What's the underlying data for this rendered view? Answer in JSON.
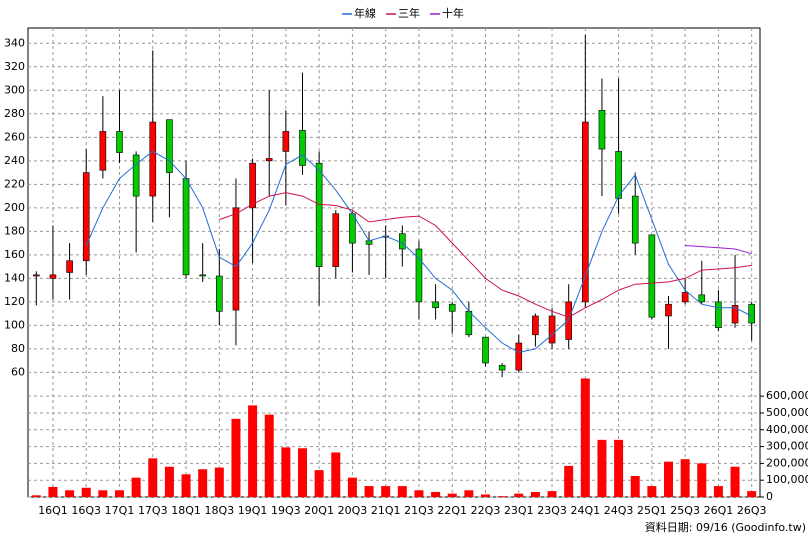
{
  "chart_data": {
    "type": "candlestick",
    "legend": [
      "年線",
      "三年",
      "十年"
    ],
    "categories": [
      null,
      "16Q1",
      null,
      "16Q3",
      null,
      "17Q1",
      null,
      "17Q3",
      null,
      "18Q1",
      null,
      "18Q3",
      null,
      "19Q1",
      null,
      "19Q3",
      null,
      "20Q1",
      null,
      "20Q3",
      null,
      "21Q1",
      null,
      "21Q3",
      null,
      "22Q1",
      null,
      "22Q3",
      null,
      "23Q1",
      null,
      "23Q3",
      null,
      "24Q1",
      null,
      "24Q3",
      null,
      "25Q1",
      null,
      "25Q3",
      null,
      "26Q1",
      null,
      "26Q3"
    ],
    "open": [
      142,
      140,
      145,
      155,
      232,
      265,
      245,
      210,
      275,
      225,
      143,
      142,
      113,
      200,
      240,
      248,
      266,
      238,
      150,
      195,
      172,
      175,
      178,
      165,
      120,
      118,
      112,
      90,
      66,
      62,
      92,
      85,
      88,
      120,
      283,
      248,
      210,
      177,
      108,
      120,
      126,
      120,
      102,
      118
    ],
    "high": [
      146,
      185,
      170,
      250,
      295,
      300,
      248,
      334,
      275,
      240,
      170,
      165,
      225,
      242,
      300,
      283,
      315,
      248,
      198,
      197,
      180,
      185,
      185,
      172,
      135,
      120,
      120,
      90,
      68,
      92,
      110,
      115,
      135,
      347,
      310,
      310,
      230,
      177,
      125,
      140,
      155,
      130,
      160,
      120
    ],
    "low": [
      117,
      122,
      122,
      143,
      225,
      238,
      162,
      188,
      192,
      140,
      137,
      100,
      83,
      153,
      210,
      202,
      228,
      117,
      140,
      145,
      143,
      140,
      150,
      105,
      105,
      93,
      90,
      65,
      56,
      60,
      82,
      80,
      80,
      115,
      210,
      195,
      160,
      105,
      80,
      118,
      118,
      95,
      98,
      87
    ],
    "close": [
      143,
      143,
      155,
      230,
      265,
      247,
      210,
      273,
      230,
      143,
      142,
      112,
      200,
      238,
      242,
      265,
      236,
      150,
      195,
      170,
      169,
      176,
      165,
      120,
      115,
      112,
      92,
      68,
      62,
      85,
      108,
      108,
      120,
      273,
      250,
      208,
      170,
      107,
      118,
      128,
      120,
      98,
      117,
      102
    ],
    "up_color": "#ff0000",
    "down_color": "#00cc00",
    "series": [
      {
        "name": "年線",
        "color": "#1f6fd1",
        "values": [
          null,
          null,
          null,
          168,
          200,
          225,
          237,
          248,
          240,
          225,
          200,
          158,
          150,
          170,
          198,
          237,
          245,
          232,
          215,
          195,
          172,
          176,
          170,
          157,
          140,
          130,
          112,
          98,
          85,
          77,
          80,
          92,
          105,
          142,
          180,
          210,
          228,
          190,
          152,
          130,
          118,
          115,
          115,
          108
        ]
      },
      {
        "name": "三年",
        "color": "#d0104c",
        "values": [
          null,
          null,
          null,
          null,
          null,
          null,
          null,
          null,
          null,
          null,
          null,
          190,
          195,
          203,
          210,
          213,
          210,
          203,
          202,
          198,
          188,
          190,
          192,
          193,
          185,
          170,
          155,
          140,
          130,
          125,
          118,
          112,
          107,
          115,
          122,
          130,
          135,
          136,
          137,
          140,
          147,
          148,
          149,
          151
        ]
      },
      {
        "name": "十年",
        "color": "#9b1fcf",
        "values": [
          null,
          null,
          null,
          null,
          null,
          null,
          null,
          null,
          null,
          null,
          null,
          null,
          null,
          null,
          null,
          null,
          null,
          null,
          null,
          null,
          null,
          null,
          null,
          null,
          null,
          null,
          null,
          null,
          null,
          null,
          null,
          null,
          null,
          null,
          null,
          null,
          null,
          null,
          null,
          168,
          167,
          166,
          165,
          161
        ]
      }
    ],
    "volume": {
      "color": "#ff0000",
      "axis": "y2",
      "values": [
        10000,
        60000,
        40000,
        55000,
        40000,
        40000,
        115000,
        230000,
        180000,
        135000,
        165000,
        175000,
        465000,
        545000,
        490000,
        295000,
        290000,
        160000,
        265000,
        115000,
        65000,
        65000,
        65000,
        40000,
        30000,
        20000,
        40000,
        15000,
        5000,
        20000,
        30000,
        35000,
        185000,
        705000,
        340000,
        340000,
        125000,
        65000,
        210000,
        225000,
        200000,
        65000,
        180000,
        35000
      ]
    },
    "ylim": [
      -46,
      353
    ],
    "yticks": [
      60,
      80,
      100,
      120,
      140,
      160,
      180,
      200,
      220,
      240,
      260,
      280,
      300,
      320,
      340
    ],
    "y2lim": [
      0,
      2790000
    ],
    "y2ticks": [
      0,
      {
        "value": 100000,
        "label": "100,000"
      },
      {
        "value": 200000,
        "label": "200,000"
      },
      {
        "value": 300000,
        "label": "300,000"
      },
      {
        "value": 400000,
        "label": "400,000"
      },
      {
        "value": 500000,
        "label": "500,000"
      },
      {
        "value": 600000,
        "label": "600,000"
      }
    ],
    "grid": true,
    "footnote": "資料日期: 09/16 (Goodinfo.tw)"
  }
}
